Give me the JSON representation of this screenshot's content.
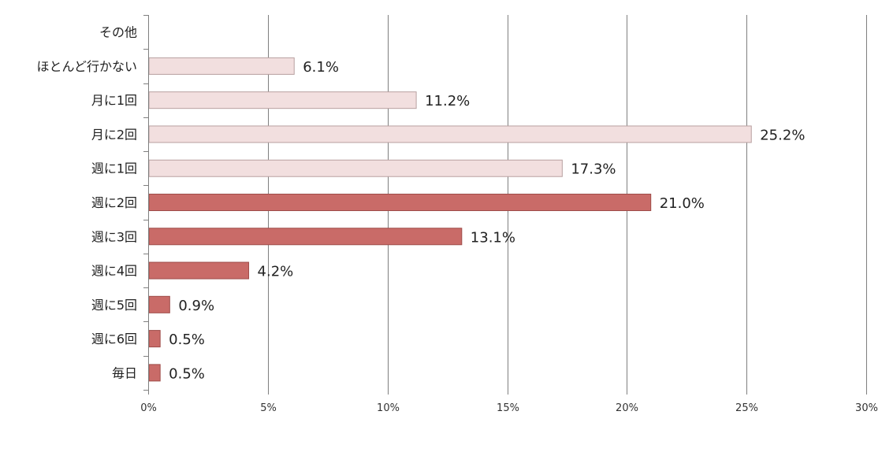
{
  "chart_data": {
    "type": "bar",
    "orientation": "horizontal",
    "title": "",
    "xlabel": "",
    "ylabel": "",
    "xlim": [
      0,
      30
    ],
    "x_ticks": [
      0,
      5,
      10,
      15,
      20,
      25,
      30
    ],
    "x_tick_labels": [
      "0%",
      "5%",
      "10%",
      "15%",
      "20%",
      "25%",
      "30%"
    ],
    "grid": "vertical",
    "legend": "none",
    "categories": [
      "その他",
      "ほとんど行かない",
      "月に1回",
      "月に2回",
      "週に1回",
      "週に2回",
      "週に3回",
      "週に4回",
      "週に5回",
      "週に6回",
      "毎日"
    ],
    "values": [
      null,
      6.1,
      11.2,
      25.2,
      17.3,
      21.0,
      13.1,
      4.2,
      0.9,
      0.5,
      0.5
    ],
    "value_labels": [
      "",
      "6.1%",
      "11.2%",
      "25.2%",
      "17.3%",
      "21.0%",
      "13.1%",
      "4.2%",
      "0.9%",
      "0.5%",
      "0.5%"
    ],
    "bar_fill": [
      "#f2dfdf",
      "#f2dfdf",
      "#f2dfdf",
      "#f2dfdf",
      "#f2dfdf",
      "#c96b68",
      "#c96b68",
      "#c96b68",
      "#c96b68",
      "#c96b68",
      "#c96b68"
    ],
    "bar_stroke": [
      "#b8a0a0",
      "#b8a0a0",
      "#b8a0a0",
      "#b8a0a0",
      "#b8a0a0",
      "#9e4c49",
      "#9e4c49",
      "#9e4c49",
      "#9e4c49",
      "#9e4c49",
      "#9e4c49"
    ],
    "gridline_color": "#7f7f7f",
    "axis_color": "#7f7f7f"
  }
}
